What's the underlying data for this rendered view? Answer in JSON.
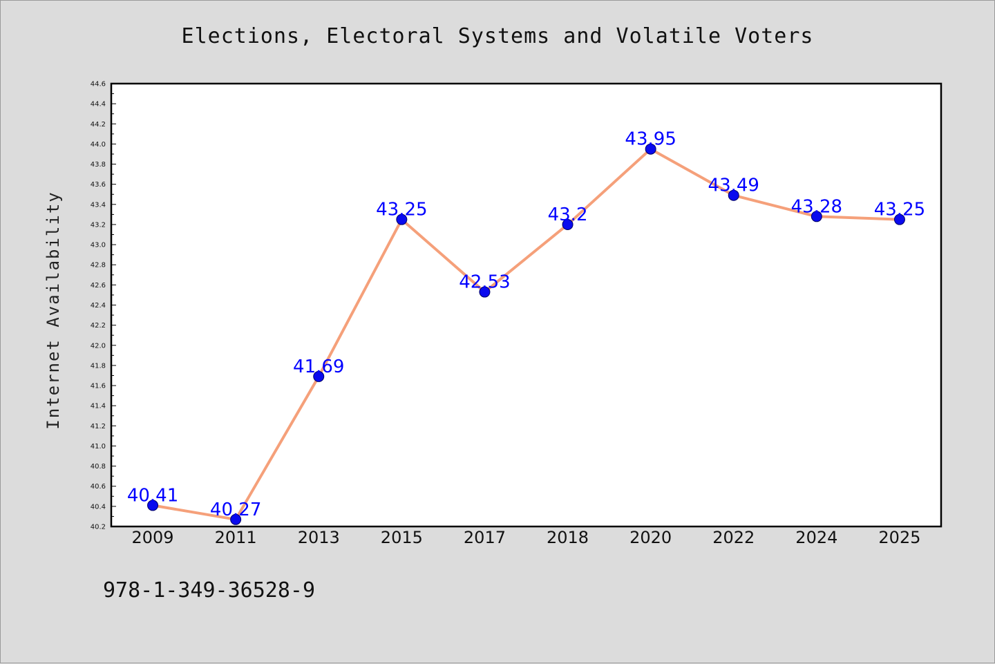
{
  "chart_data": {
    "type": "line",
    "title": "Elections, Electoral Systems and Volatile Voters",
    "xlabel": "",
    "ylabel": "Internet Availability",
    "categories": [
      "2009",
      "2011",
      "2013",
      "2015",
      "2017",
      "2018",
      "2020",
      "2022",
      "2024",
      "2025"
    ],
    "series": [
      {
        "values": [
          40.41,
          40.27,
          41.69,
          43.25,
          42.53,
          43.2,
          43.95,
          43.49,
          43.28,
          43.25
        ],
        "data_labels": [
          "40.41",
          "40.27",
          "41.69",
          "43.25",
          "42.53",
          "43.2",
          "43.95",
          "43.49",
          "43.28",
          "43.25"
        ]
      }
    ],
    "ylim": [
      40.2,
      44.6
    ],
    "yticks": [
      "40.2",
      "40.4",
      "40.6",
      "40.8",
      "41.0",
      "41.2",
      "41.4",
      "41.6",
      "41.8",
      "42.0",
      "42.2",
      "42.4",
      "42.6",
      "42.8",
      "43.0",
      "43.2",
      "43.4",
      "43.6",
      "43.8",
      "44.0",
      "44.2",
      "44.4",
      "44.6"
    ],
    "grid": false,
    "colors": {
      "line": "#f5a07a",
      "marker": "#0a0aee",
      "marker_edge": "#000066",
      "label": "#0000ff",
      "plot_bg": "#ffffff",
      "figure_bg": "#dcdcdc"
    }
  },
  "footer_text": "978-1-349-36528-9"
}
